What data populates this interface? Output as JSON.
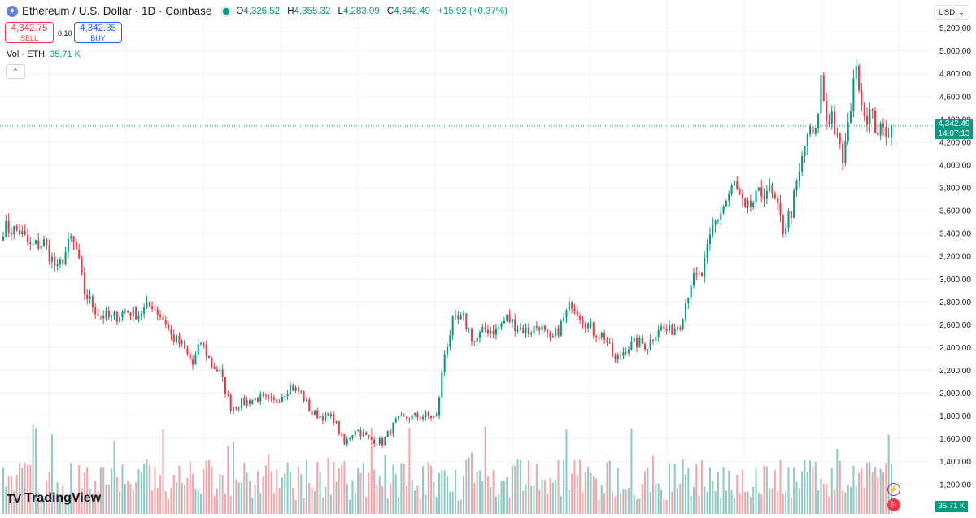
{
  "header": {
    "symbol_icon": "ethereum-icon",
    "title": "Ethereum / U.S. Dollar · 1D · Coinbase",
    "ohlc": [
      {
        "label": "O",
        "value": "4,326.52"
      },
      {
        "label": "H",
        "value": "4,355.32"
      },
      {
        "label": "L",
        "value": "4,283.09"
      },
      {
        "label": "C",
        "value": "4,342.49"
      },
      {
        "label": "",
        "value": "+15.92 (+0.37%)"
      }
    ]
  },
  "trade": {
    "sell_price": "4,342.75",
    "sell_label": "SELL",
    "spread": "0.10",
    "buy_price": "4,342.85",
    "buy_label": "BUY"
  },
  "volume_legend": {
    "label": "Vol · ETH",
    "value": "35.71 K"
  },
  "currency": {
    "label": "USD"
  },
  "price_badge": {
    "price": "4,342.49",
    "countdown": "14:07:13"
  },
  "volume_badge": "35.71 K",
  "logo": {
    "mark": "TV",
    "text": "TradingView"
  },
  "colors": {
    "up": "#089981",
    "down": "#f23645",
    "up_volume": "#8fcbc4",
    "down_volume": "#f5a6ab",
    "grid": "#f0f3fa"
  },
  "chart_data": {
    "type": "candlestick",
    "y_ticks": [
      "1,200.00",
      "1,400.00",
      "1,600.00",
      "1,800.00",
      "2,000.00",
      "2,200.00",
      "2,400.00",
      "2,600.00",
      "2,800.00",
      "3,000.00",
      "3,200.00",
      "3,400.00",
      "3,600.00",
      "3,800.00",
      "4,000.00",
      "4,200.00",
      "4,400.00",
      "4,600.00",
      "4,800.00",
      "5,000.00",
      "5,200.00"
    ],
    "ylim": [
      1120,
      5240
    ],
    "current_price": 4342.49,
    "anchors": [
      [
        0,
        3450
      ],
      [
        6,
        3420
      ],
      [
        10,
        3280
      ],
      [
        15,
        3320
      ],
      [
        20,
        3070
      ],
      [
        25,
        3350
      ],
      [
        27,
        3250
      ],
      [
        30,
        2880
      ],
      [
        35,
        2700
      ],
      [
        40,
        2650
      ],
      [
        45,
        2720
      ],
      [
        50,
        2700
      ],
      [
        55,
        2780
      ],
      [
        60,
        2620
      ],
      [
        62,
        2500
      ],
      [
        66,
        2420
      ],
      [
        70,
        2250
      ],
      [
        73,
        2450
      ],
      [
        77,
        2250
      ],
      [
        80,
        2180
      ],
      [
        84,
        1880
      ],
      [
        88,
        1910
      ],
      [
        94,
        1960
      ],
      [
        100,
        1920
      ],
      [
        106,
        2060
      ],
      [
        110,
        2000
      ],
      [
        114,
        1820
      ],
      [
        118,
        1800
      ],
      [
        122,
        1780
      ],
      [
        126,
        1550
      ],
      [
        130,
        1690
      ],
      [
        135,
        1600
      ],
      [
        140,
        1570
      ],
      [
        145,
        1750
      ],
      [
        150,
        1790
      ],
      [
        156,
        1800
      ],
      [
        160,
        1790
      ],
      [
        163,
        2350
      ],
      [
        166,
        2620
      ],
      [
        170,
        2650
      ],
      [
        174,
        2450
      ],
      [
        178,
        2560
      ],
      [
        182,
        2550
      ],
      [
        186,
        2660
      ],
      [
        190,
        2580
      ],
      [
        194,
        2540
      ],
      [
        198,
        2600
      ],
      [
        202,
        2440
      ],
      [
        206,
        2600
      ],
      [
        210,
        2800
      ],
      [
        214,
        2660
      ],
      [
        218,
        2540
      ],
      [
        222,
        2500
      ],
      [
        226,
        2280
      ],
      [
        230,
        2400
      ],
      [
        234,
        2440
      ],
      [
        238,
        2420
      ],
      [
        242,
        2580
      ],
      [
        246,
        2540
      ],
      [
        250,
        2620
      ],
      [
        254,
        2980
      ],
      [
        258,
        3030
      ],
      [
        262,
        3450
      ],
      [
        266,
        3640
      ],
      [
        270,
        3830
      ],
      [
        274,
        3580
      ],
      [
        278,
        3700
      ],
      [
        282,
        3800
      ],
      [
        285,
        3670
      ],
      [
        288,
        3440
      ],
      [
        291,
        3600
      ],
      [
        294,
        3920
      ],
      [
        297,
        4280
      ],
      [
        300,
        4250
      ],
      [
        302,
        4750
      ],
      [
        304,
        4400
      ],
      [
        306,
        4450
      ],
      [
        308,
        4200
      ],
      [
        310,
        4050
      ],
      [
        312,
        4300
      ],
      [
        314,
        4800
      ],
      [
        316,
        4760
      ],
      [
        318,
        4450
      ],
      [
        320,
        4450
      ],
      [
        322,
        4350
      ],
      [
        324,
        4280
      ],
      [
        326,
        4310
      ],
      [
        328,
        4342
      ]
    ],
    "volume_range": [
      0,
      140
    ],
    "volume_units": "K ETH"
  }
}
